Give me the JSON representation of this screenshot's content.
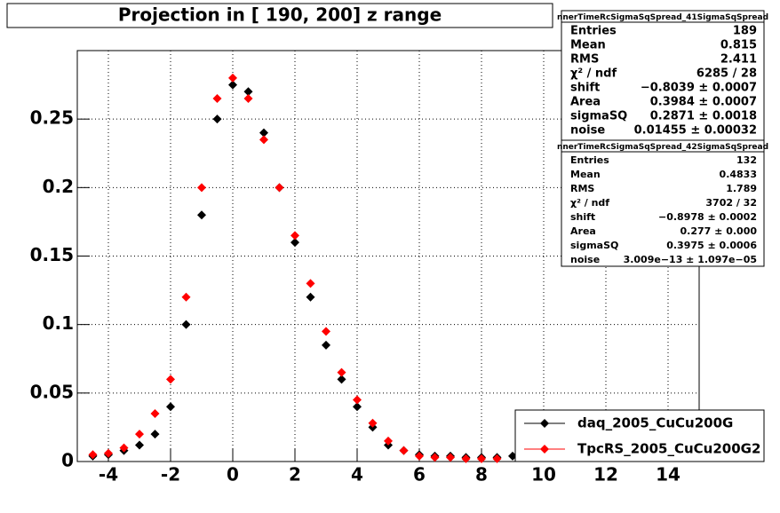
{
  "chart_data": {
    "type": "scatter",
    "title": "Projection in [ 190, 200] z range",
    "x": [
      -4.5,
      -4,
      -3.5,
      -3,
      -2.5,
      -2,
      -1.5,
      -1,
      -0.5,
      0,
      0.5,
      1,
      1.5,
      2,
      2.5,
      3,
      3.5,
      4,
      4.5,
      5,
      5.5,
      6,
      6.5,
      7,
      7.5,
      8,
      8.5,
      9
    ],
    "series": [
      {
        "name": "daq_2005_CuCu200G",
        "color": "#000000",
        "values": [
          0.004,
          0.005,
          0.008,
          0.012,
          0.02,
          0.04,
          0.1,
          0.18,
          0.25,
          0.275,
          0.27,
          0.24,
          0.2,
          0.16,
          0.12,
          0.085,
          0.06,
          0.04,
          0.025,
          0.012,
          0.008,
          0.005,
          0.004,
          0.004,
          0.003,
          0.003,
          0.003,
          0.004
        ]
      },
      {
        "name": "TpcRS_2005_CuCu200G2",
        "color": "#ff0000",
        "values": [
          0.005,
          0.006,
          0.01,
          0.02,
          0.035,
          0.06,
          0.12,
          0.2,
          0.265,
          0.28,
          0.265,
          0.235,
          0.2,
          0.165,
          0.13,
          0.095,
          0.065,
          0.045,
          0.028,
          0.015,
          0.008,
          0.004,
          0.003,
          0.003,
          0.002,
          0.002,
          0.002,
          null
        ]
      }
    ],
    "xlim": [
      -5,
      15
    ],
    "ylim": [
      0,
      0.3
    ],
    "xticks": [
      -4,
      -2,
      0,
      2,
      4,
      6,
      8,
      10,
      12,
      14
    ],
    "yticks": [
      0,
      0.05,
      0.1,
      0.15,
      0.2,
      0.25
    ],
    "grid": true,
    "legend": "bottom-right",
    "stats": [
      {
        "title": "nnerTimeRcSigmaSqSpread_41SigmaSqSpread",
        "rows": [
          [
            "Entries",
            "189"
          ],
          [
            "Mean",
            "0.815"
          ],
          [
            "RMS",
            "2.411"
          ],
          [
            "χ² / ndf",
            "6285 / 28"
          ],
          [
            "shift",
            "−0.8039 ± 0.0007"
          ],
          [
            "Area",
            "0.3984 ± 0.0007"
          ],
          [
            "sigmaSQ",
            "0.2871 ± 0.0018"
          ],
          [
            "noise",
            "0.01455 ± 0.00032"
          ]
        ]
      },
      {
        "title": "nnerTimeRcSigmaSqSpread_42SigmaSqSpread",
        "rows": [
          [
            "Entries",
            "132"
          ],
          [
            "Mean",
            "0.4833"
          ],
          [
            "RMS",
            "1.789"
          ],
          [
            "χ² / ndf",
            "3702 / 32"
          ],
          [
            "shift",
            "−0.8978 ± 0.0002"
          ],
          [
            "Area",
            "0.277 ± 0.000"
          ],
          [
            "sigmaSQ",
            "0.3975 ± 0.0006"
          ],
          [
            "noise",
            "3.009e−13 ± 1.097e−05"
          ]
        ]
      }
    ]
  }
}
